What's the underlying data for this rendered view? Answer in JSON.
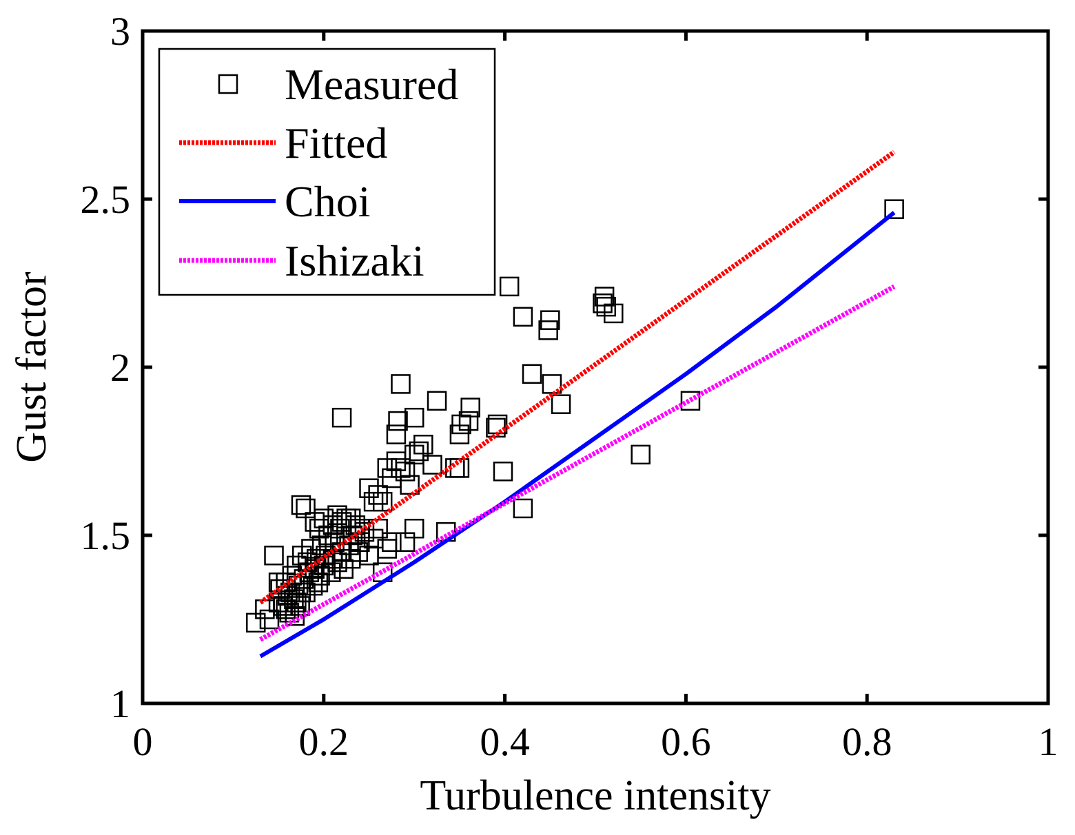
{
  "chart_data": {
    "type": "scatter",
    "title": "",
    "xlabel": "Turbulence intensity",
    "ylabel": "Gust factor",
    "xlim": [
      0,
      1
    ],
    "ylim": [
      1,
      3
    ],
    "xticks": [
      0,
      0.2,
      0.4,
      0.6,
      0.8,
      1
    ],
    "xtick_labels": [
      "0",
      "0.2",
      "0.4",
      "0.6",
      "0.8",
      "1"
    ],
    "yticks": [
      1,
      1.5,
      2,
      2.5,
      3
    ],
    "ytick_labels": [
      "1",
      "1.5",
      "2",
      "2.5",
      "3"
    ],
    "grid": false,
    "legend_position": "top-left",
    "series": [
      {
        "name": "Measured",
        "kind": "markers",
        "marker": "square",
        "color": "#000000",
        "points": [
          [
            0.125,
            1.24
          ],
          [
            0.135,
            1.28
          ],
          [
            0.14,
            1.25
          ],
          [
            0.15,
            1.3
          ],
          [
            0.152,
            1.34
          ],
          [
            0.155,
            1.29
          ],
          [
            0.158,
            1.36
          ],
          [
            0.16,
            1.32
          ],
          [
            0.162,
            1.27
          ],
          [
            0.165,
            1.38
          ],
          [
            0.167,
            1.31
          ],
          [
            0.17,
            1.41
          ],
          [
            0.172,
            1.35
          ],
          [
            0.174,
            1.29
          ],
          [
            0.176,
            1.44
          ],
          [
            0.178,
            1.37
          ],
          [
            0.18,
            1.33
          ],
          [
            0.182,
            1.42
          ],
          [
            0.184,
            1.39
          ],
          [
            0.186,
            1.46
          ],
          [
            0.188,
            1.35
          ],
          [
            0.19,
            1.4
          ],
          [
            0.192,
            1.43
          ],
          [
            0.194,
            1.36
          ],
          [
            0.196,
            1.38
          ],
          [
            0.198,
            1.47
          ],
          [
            0.2,
            1.41
          ],
          [
            0.202,
            1.44
          ],
          [
            0.205,
            1.5
          ],
          [
            0.208,
            1.39
          ],
          [
            0.21,
            1.43
          ],
          [
            0.212,
            1.48
          ],
          [
            0.215,
            1.42
          ],
          [
            0.218,
            1.52
          ],
          [
            0.22,
            1.45
          ],
          [
            0.222,
            1.4
          ],
          [
            0.225,
            1.55
          ],
          [
            0.228,
            1.47
          ],
          [
            0.23,
            1.43
          ],
          [
            0.232,
            1.5
          ],
          [
            0.235,
            1.53
          ],
          [
            0.238,
            1.45
          ],
          [
            0.24,
            1.48
          ],
          [
            0.245,
            1.51
          ],
          [
            0.25,
            1.44
          ],
          [
            0.255,
            1.49
          ],
          [
            0.26,
            1.52
          ],
          [
            0.265,
            1.39
          ],
          [
            0.27,
            1.46
          ],
          [
            0.275,
            1.48
          ],
          [
            0.175,
            1.59
          ],
          [
            0.18,
            1.58
          ],
          [
            0.19,
            1.54
          ],
          [
            0.195,
            1.52
          ],
          [
            0.2,
            1.55
          ],
          [
            0.21,
            1.53
          ],
          [
            0.215,
            1.56
          ],
          [
            0.22,
            1.54
          ],
          [
            0.23,
            1.55
          ],
          [
            0.24,
            1.52
          ],
          [
            0.145,
            1.44
          ],
          [
            0.15,
            1.36
          ],
          [
            0.158,
            1.28
          ],
          [
            0.163,
            1.33
          ],
          [
            0.168,
            1.26
          ],
          [
            0.17,
            1.3
          ],
          [
            0.175,
            1.33
          ],
          [
            0.25,
            1.64
          ],
          [
            0.255,
            1.6
          ],
          [
            0.26,
            1.62
          ],
          [
            0.265,
            1.6
          ],
          [
            0.27,
            1.7
          ],
          [
            0.275,
            1.67
          ],
          [
            0.28,
            1.72
          ],
          [
            0.285,
            1.7
          ],
          [
            0.29,
            1.69
          ],
          [
            0.295,
            1.65
          ],
          [
            0.3,
            1.74
          ],
          [
            0.305,
            1.75
          ],
          [
            0.31,
            1.77
          ],
          [
            0.29,
            1.48
          ],
          [
            0.3,
            1.52
          ],
          [
            0.32,
            1.71
          ],
          [
            0.28,
            1.8
          ],
          [
            0.282,
            1.84
          ],
          [
            0.3,
            1.85
          ],
          [
            0.285,
            1.95
          ],
          [
            0.325,
            1.9
          ],
          [
            0.22,
            1.85
          ],
          [
            0.335,
            1.51
          ],
          [
            0.345,
            1.7
          ],
          [
            0.35,
            1.7
          ],
          [
            0.35,
            1.8
          ],
          [
            0.352,
            1.83
          ],
          [
            0.36,
            1.84
          ],
          [
            0.362,
            1.88
          ],
          [
            0.39,
            1.82
          ],
          [
            0.392,
            1.83
          ],
          [
            0.398,
            1.69
          ],
          [
            0.42,
            1.58
          ],
          [
            0.43,
            1.98
          ],
          [
            0.452,
            1.95
          ],
          [
            0.462,
            1.89
          ],
          [
            0.405,
            2.24
          ],
          [
            0.42,
            2.15
          ],
          [
            0.45,
            2.14
          ],
          [
            0.448,
            2.11
          ],
          [
            0.51,
            2.21
          ],
          [
            0.512,
            2.18
          ],
          [
            0.52,
            2.16
          ],
          [
            0.508,
            2.19
          ],
          [
            0.55,
            1.74
          ],
          [
            0.605,
            1.9
          ],
          [
            0.83,
            2.47
          ]
        ]
      },
      {
        "name": "Fitted",
        "kind": "line",
        "style": "dotted",
        "color": "#ff0000",
        "x": [
          0.13,
          0.83
        ],
        "y": [
          1.3,
          2.64
        ]
      },
      {
        "name": "Choi",
        "kind": "line",
        "style": "solid",
        "color": "#0000ff",
        "x": [
          0.13,
          0.2,
          0.3,
          0.4,
          0.5,
          0.6,
          0.7,
          0.83
        ],
        "y": [
          1.14,
          1.25,
          1.42,
          1.6,
          1.79,
          1.98,
          2.18,
          2.46
        ]
      },
      {
        "name": "Ishizaki",
        "kind": "line",
        "style": "dotted",
        "color": "#ff00ff",
        "x": [
          0.13,
          0.83
        ],
        "y": [
          1.19,
          2.24
        ]
      }
    ]
  }
}
